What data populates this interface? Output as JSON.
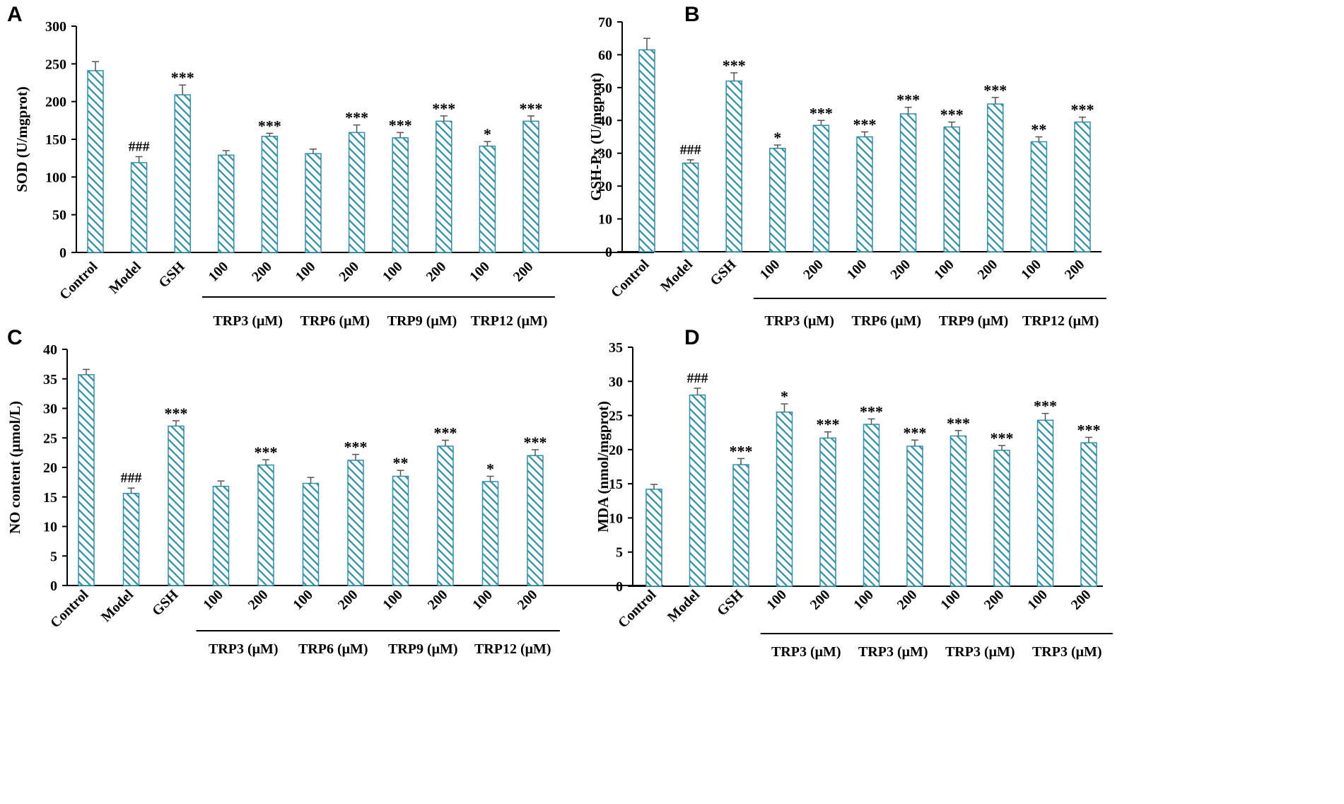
{
  "bar_color": "#2e8fa8",
  "axis_color": "#000000",
  "chart_data": [
    {
      "panel": "A",
      "type": "bar",
      "ylabel": "SOD (U/mgprot)",
      "ylim": [
        0,
        300
      ],
      "yticks": [
        0,
        50,
        100,
        150,
        200,
        250,
        300
      ],
      "categories": [
        "Control",
        "Model",
        "GSH",
        "100",
        "200",
        "100",
        "200",
        "100",
        "200",
        "100",
        "200"
      ],
      "values": [
        241,
        119,
        209,
        129,
        154,
        131,
        159,
        152,
        174,
        141,
        174
      ],
      "errors": [
        12,
        8,
        13,
        6,
        4,
        6,
        10,
        7,
        7,
        6,
        7
      ],
      "annotations": [
        "",
        "###",
        "***",
        "",
        "***",
        "",
        "***",
        "***",
        "***",
        "*",
        "***"
      ],
      "groups": [
        {
          "label": "TRP3 (μM)",
          "from": 3,
          "to": 4
        },
        {
          "label": "TRP6 (μM)",
          "from": 5,
          "to": 6
        },
        {
          "label": "TRP9 (μM)",
          "from": 7,
          "to": 8
        },
        {
          "label": "TRP12 (μM)",
          "from": 9,
          "to": 10
        }
      ]
    },
    {
      "panel": "B",
      "type": "bar",
      "ylabel": "GSH-Px (U/mgprot)",
      "ylim": [
        0,
        70
      ],
      "yticks": [
        0,
        10,
        20,
        30,
        40,
        50,
        60,
        70
      ],
      "categories": [
        "Control",
        "Model",
        "GSH",
        "100",
        "200",
        "100",
        "200",
        "100",
        "200",
        "100",
        "200"
      ],
      "values": [
        61.5,
        27,
        52,
        31.5,
        38.5,
        35,
        42,
        38,
        45,
        33.5,
        39.5
      ],
      "errors": [
        3.5,
        1.0,
        2.5,
        1.0,
        1.5,
        1.5,
        2.0,
        1.5,
        2.0,
        1.5,
        1.5
      ],
      "annotations": [
        "",
        "###",
        "***",
        "*",
        "***",
        "***",
        "***",
        "***",
        "***",
        "**",
        "***"
      ],
      "groups": [
        {
          "label": "TRP3 (μM)",
          "from": 3,
          "to": 4
        },
        {
          "label": "TRP6 (μM)",
          "from": 5,
          "to": 6
        },
        {
          "label": "TRP9 (μM)",
          "from": 7,
          "to": 8
        },
        {
          "label": "TRP12 (μM)",
          "from": 9,
          "to": 10
        }
      ]
    },
    {
      "panel": "C",
      "type": "bar",
      "ylabel": "NO content (μmol/L)",
      "ylim": [
        0,
        40
      ],
      "yticks": [
        0,
        5,
        10,
        15,
        20,
        25,
        30,
        35,
        40
      ],
      "categories": [
        "Control",
        "Model",
        "GSH",
        "100",
        "200",
        "100",
        "200",
        "100",
        "200",
        "100",
        "200"
      ],
      "values": [
        35.7,
        15.6,
        27,
        16.8,
        20.4,
        17.3,
        21.2,
        18.5,
        23.6,
        17.6,
        22
      ],
      "errors": [
        0.9,
        0.9,
        0.9,
        0.9,
        0.9,
        1.0,
        1.0,
        1.0,
        1.0,
        0.9,
        1.0
      ],
      "annotations": [
        "",
        "###",
        "***",
        "",
        "***",
        "",
        "***",
        "**",
        "***",
        "*",
        "***"
      ],
      "groups": [
        {
          "label": "TRP3 (μM)",
          "from": 3,
          "to": 4
        },
        {
          "label": "TRP6 (μM)",
          "from": 5,
          "to": 6
        },
        {
          "label": "TRP9 (μM)",
          "from": 7,
          "to": 8
        },
        {
          "label": "TRP12 (μM)",
          "from": 9,
          "to": 10
        }
      ]
    },
    {
      "panel": "D",
      "type": "bar",
      "ylabel": "MDA (nmol/mgprot)",
      "ylim": [
        0,
        35
      ],
      "yticks": [
        0,
        5,
        10,
        15,
        20,
        25,
        30,
        35
      ],
      "categories": [
        "Control",
        "Model",
        "GSH",
        "100",
        "200",
        "100",
        "200",
        "100",
        "200",
        "100",
        "200"
      ],
      "values": [
        14.2,
        28,
        17.8,
        25.5,
        21.7,
        23.7,
        20.5,
        22,
        19.9,
        24.3,
        21
      ],
      "errors": [
        0.7,
        1.0,
        0.9,
        1.2,
        0.9,
        0.8,
        0.9,
        0.8,
        0.7,
        1.0,
        0.8
      ],
      "annotations": [
        "",
        "###",
        "***",
        "*",
        "***",
        "***",
        "***",
        "***",
        "***",
        "***",
        "***"
      ],
      "groups": [
        {
          "label": "TRP3 (μM)",
          "from": 3,
          "to": 4
        },
        {
          "label": "TRP3 (μM)",
          "from": 5,
          "to": 6
        },
        {
          "label": "TRP3 (μM)",
          "from": 7,
          "to": 8
        },
        {
          "label": "TRP3 (μM)",
          "from": 9,
          "to": 10
        }
      ]
    }
  ]
}
